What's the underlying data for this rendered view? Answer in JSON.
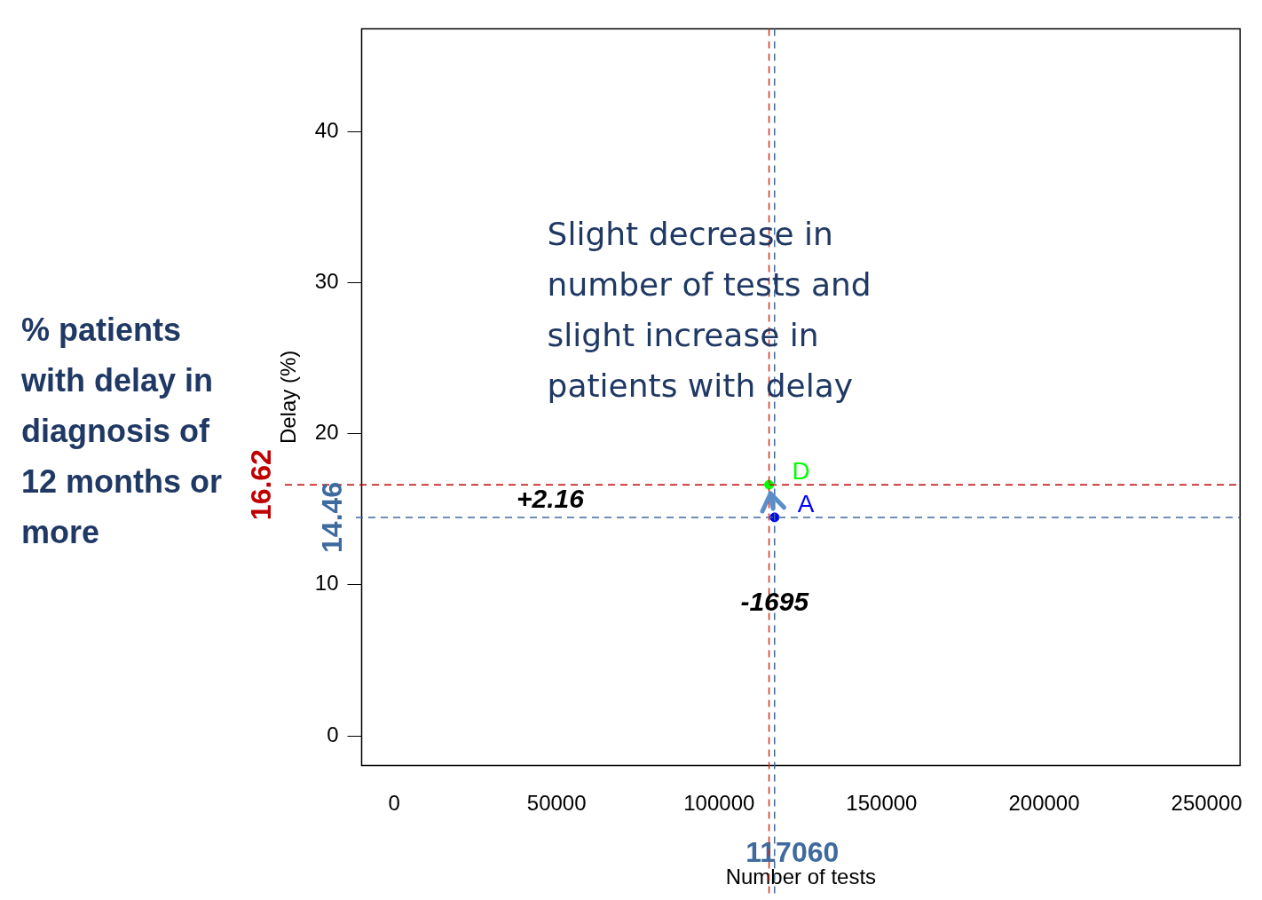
{
  "chart_data": {
    "type": "scatter",
    "title": "% patients with delay in diagnosis of 12 months or more",
    "xlabel": "Number of tests",
    "ylabel": "Delay (%)",
    "series": [
      {
        "name": "A",
        "color": "#0000ff",
        "x": [
          117060
        ],
        "values": [
          14.46
        ]
      },
      {
        "name": "D",
        "color": "#00ff00",
        "x": [
          115365
        ],
        "values": [
          16.62
        ]
      }
    ],
    "marker": "circle",
    "xlim": [
      -10000,
      260300
    ],
    "xticks": [
      0,
      50000,
      100000,
      150000,
      200000,
      250000
    ],
    "ylim": [
      -1.96,
      46.8
    ],
    "yticks": [
      0,
      10,
      20,
      30,
      40
    ],
    "grid": false,
    "ref_lines": [
      {
        "axis": "y",
        "value": 16.62,
        "label": "16.62",
        "color": "#c00000",
        "line_style": "dashed"
      },
      {
        "axis": "y",
        "value": 14.46,
        "label": "14.46",
        "color": "#3e6a9e",
        "line_style": "dashed"
      },
      {
        "axis": "x",
        "value": 117060,
        "label": "117060",
        "color": "#3e6a9e",
        "line_style": "dashed"
      },
      {
        "axis": "x",
        "value": 115365,
        "color": "#d03020",
        "line_style": "dashed"
      }
    ],
    "annotations": [
      "+2.16",
      "-1695",
      "Slight decrease in number of tests and slight increase in patients with delay"
    ]
  }
}
